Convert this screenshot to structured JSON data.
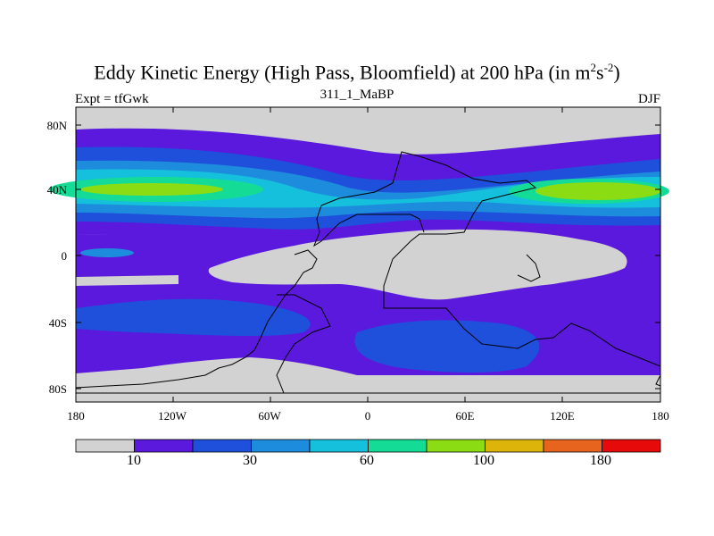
{
  "title": {
    "main": "Eddy Kinetic Energy (High Pass, Bloomfield) at 200 hPa (in m",
    "sup1": "2",
    "mid": "s",
    "sup2": "-2",
    "end": ")"
  },
  "subtitle": {
    "left": "Expt = tfGwk",
    "center": "311_1_MaBP",
    "right": "DJF"
  },
  "axes": {
    "y_ticks": [
      "80N",
      "40N",
      "0",
      "40S",
      "80S"
    ],
    "x_ticks": [
      "180",
      "120W",
      "60W",
      "0",
      "60E",
      "120E",
      "180"
    ]
  },
  "colorbar": {
    "colors": [
      "#d2d2d2",
      "#5a19dc",
      "#1e50dc",
      "#1e8cdc",
      "#14c0dc",
      "#14dc96",
      "#8cdc14",
      "#dcb40a",
      "#e6641e",
      "#e60a0a"
    ],
    "labels": [
      "10",
      "30",
      "60",
      "100",
      "180"
    ]
  },
  "map_colors": {
    "gray": "#d2d2d2",
    "purple": "#5a19dc",
    "blue": "#1e50dc",
    "mid_blue": "#1e8cdc",
    "cyan": "#14c0dc",
    "teal": "#14dc96",
    "lime": "#8cdc14"
  }
}
